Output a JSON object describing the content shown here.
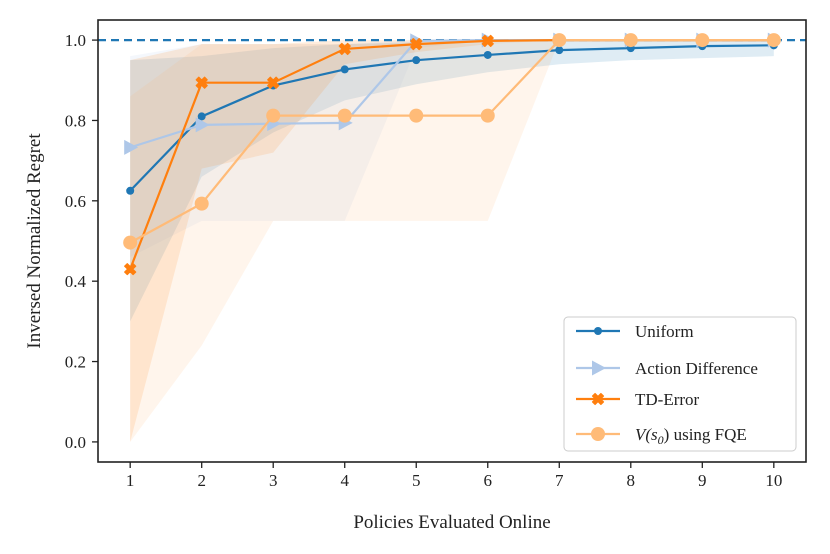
{
  "chart_data": {
    "type": "line",
    "title": "",
    "xlabel": "Policies Evaluated Online",
    "ylabel": "Inversed Normalized Regret",
    "xlim": [
      0.55,
      10.45
    ],
    "ylim": [
      -0.05,
      1.05
    ],
    "x": [
      1,
      2,
      3,
      4,
      5,
      6,
      7,
      8,
      9,
      10
    ],
    "x_ticks": [
      "1",
      "2",
      "3",
      "4",
      "5",
      "6",
      "7",
      "8",
      "9",
      "10"
    ],
    "y_ticks": [
      "0.0",
      "0.2",
      "0.4",
      "0.6",
      "0.8",
      "1.0"
    ],
    "y_tick_values": [
      0.0,
      0.2,
      0.4,
      0.6,
      0.8,
      1.0
    ],
    "reference_line": {
      "y": 1.0,
      "style": "dashed",
      "color": "#1f77b4"
    },
    "grid": false,
    "legend_position": "lower-right",
    "series": [
      {
        "name": "Uniform",
        "color": "#1f77b4",
        "marker": "circle-small",
        "values": [
          0.625,
          0.81,
          0.887,
          0.927,
          0.95,
          0.963,
          0.975,
          0.98,
          0.985,
          0.987
        ],
        "band_lower": [
          0.3,
          0.66,
          0.77,
          0.85,
          0.89,
          0.92,
          0.94,
          0.95,
          0.955,
          0.96
        ],
        "band_upper": [
          0.95,
          0.96,
          0.98,
          0.99,
          0.995,
          1.0,
          1.0,
          1.0,
          1.0,
          1.0
        ]
      },
      {
        "name": "Action Difference",
        "color": "#aec7e8",
        "marker": "triangle-right",
        "values": [
          0.733,
          0.789,
          0.792,
          0.794,
          0.998,
          1.0,
          1.0,
          1.0,
          1.0,
          1.0
        ],
        "band_lower": [
          0.46,
          0.55,
          0.55,
          0.55,
          0.98,
          1.0,
          1.0,
          1.0,
          1.0,
          1.0
        ],
        "band_upper": [
          0.96,
          0.99,
          0.99,
          0.99,
          1.0,
          1.0,
          1.0,
          1.0,
          1.0,
          1.0
        ]
      },
      {
        "name": "TD-Error",
        "color": "#ff7f0e",
        "marker": "x-filled",
        "values": [
          0.43,
          0.894,
          0.894,
          0.978,
          0.99,
          0.998,
          1.0,
          1.0,
          1.0,
          1.0
        ],
        "band_lower": [
          0.0,
          0.68,
          0.72,
          0.94,
          0.97,
          0.99,
          1.0,
          1.0,
          1.0,
          1.0
        ],
        "band_upper": [
          0.95,
          0.99,
          0.99,
          1.0,
          1.0,
          1.0,
          1.0,
          1.0,
          1.0,
          1.0
        ]
      },
      {
        "name": "V(s0) using FQE",
        "color": "#ffbb78",
        "marker": "circle-large",
        "values": [
          0.496,
          0.593,
          0.812,
          0.812,
          0.812,
          0.812,
          1.0,
          1.0,
          1.0,
          1.0
        ],
        "band_lower": [
          0.0,
          0.24,
          0.55,
          0.55,
          0.55,
          0.55,
          1.0,
          1.0,
          1.0,
          1.0
        ],
        "band_upper": [
          0.86,
          0.99,
          0.99,
          0.99,
          0.99,
          0.99,
          1.0,
          1.0,
          1.0,
          1.0
        ]
      }
    ],
    "legend_entries": {
      "uniform": "Uniform",
      "action_difference": "Action Difference",
      "td_error": "TD-Error",
      "fqe_prefix": "V(s",
      "fqe_subscript": "0",
      "fqe_suffix": ") using FQE"
    }
  }
}
